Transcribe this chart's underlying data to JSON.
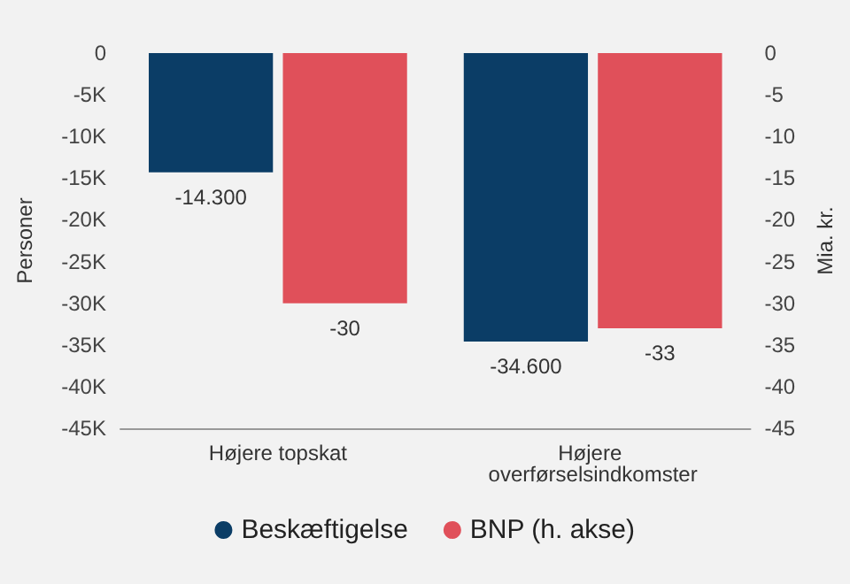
{
  "chart_data": {
    "type": "bar",
    "categories": [
      "Højere topskat",
      "Højere overførselsindkomster"
    ],
    "ylabel": "Personer",
    "y2label": "Mia. kr.",
    "ylim": [
      -45000,
      0
    ],
    "yticks": [
      {
        "value": 0,
        "label": "0"
      },
      {
        "value": -5000,
        "label": "-5K"
      },
      {
        "value": -10000,
        "label": "-10K"
      },
      {
        "value": -15000,
        "label": "-15K"
      },
      {
        "value": -20000,
        "label": "-20K"
      },
      {
        "value": -25000,
        "label": "-25K"
      },
      {
        "value": -30000,
        "label": "-30K"
      },
      {
        "value": -35000,
        "label": "-35K"
      },
      {
        "value": -40000,
        "label": "-40K"
      },
      {
        "value": -45000,
        "label": "-45K"
      }
    ],
    "y2lim": [
      -45,
      0
    ],
    "y2ticks": [
      0,
      -5,
      -10,
      -15,
      -20,
      -25,
      -30,
      -35,
      -40,
      -45
    ],
    "series": [
      {
        "name": "Beskæftigelse",
        "color": "#0b3d66",
        "values": [
          -14300,
          -34600
        ],
        "value_labels": [
          "-14.300",
          "-34.600"
        ]
      },
      {
        "name": "BNP (h. akse)",
        "color": "#e0505a",
        "values": [
          -30,
          -33
        ],
        "value_labels": [
          "-30",
          "-33"
        ],
        "axis": "y2"
      }
    ],
    "legend": "bottom",
    "grid": false,
    "marker": "circle"
  }
}
